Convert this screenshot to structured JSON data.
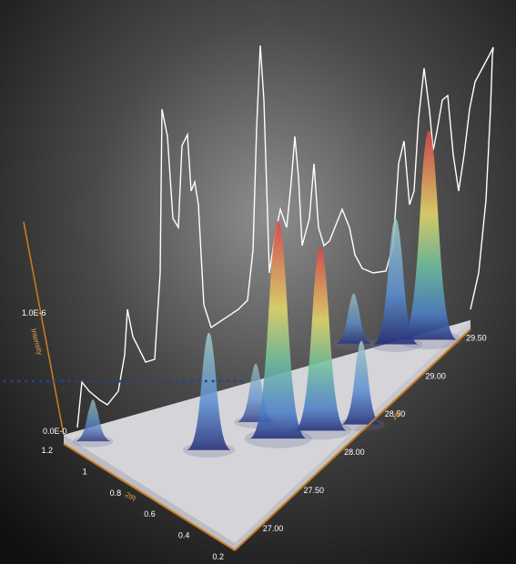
{
  "chart_data": {
    "type": "surface-3d",
    "ylabel": "Intensity",
    "xlabel": "2tR",
    "zlabel": "1tR",
    "y_ticks": [
      "0.0E-0",
      "1.0E-6"
    ],
    "x_ticks": [
      "1.2",
      "1",
      "0.8",
      "0.6",
      "0.4",
      "0.2"
    ],
    "z_ticks": [
      "27.00",
      "27.50",
      "28.00",
      "28.50",
      "29.00",
      "29.50"
    ],
    "xlim": [
      0.2,
      1.2
    ],
    "zlim": [
      26.7,
      29.6
    ],
    "peaks": [
      {
        "x": 1.1,
        "z": 26.85,
        "height": 0.1,
        "color": "#8a8fd6"
      },
      {
        "x": 0.66,
        "z": 27.35,
        "height": 0.28,
        "color": "#6fb39a"
      },
      {
        "x": 0.6,
        "z": 27.8,
        "height": 0.14,
        "color": "#2a2f8a"
      },
      {
        "x": 0.46,
        "z": 27.78,
        "height": 0.52,
        "color": "#d64848"
      },
      {
        "x": 0.34,
        "z": 28.05,
        "height": 0.44,
        "color": "#d64848"
      },
      {
        "x": 0.22,
        "z": 28.3,
        "height": 0.2,
        "color": "#4f7fc4"
      },
      {
        "x": 0.3,
        "z": 29.3,
        "height": 0.5,
        "color": "#d64848"
      },
      {
        "x": 0.4,
        "z": 29.1,
        "height": 0.3,
        "color": "#5aa58a"
      },
      {
        "x": 0.55,
        "z": 28.9,
        "height": 0.12,
        "color": "#e8e8ee"
      }
    ],
    "series_color": "#ffffff",
    "axis_color": "#c87a1f",
    "guide_color": "#2a3f9a"
  }
}
